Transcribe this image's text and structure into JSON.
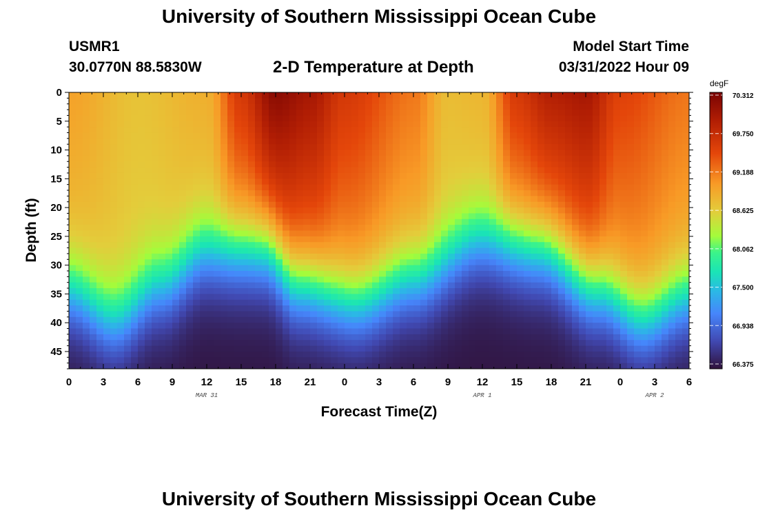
{
  "header": {
    "title": "University of Southern Mississippi Ocean Cube",
    "station_id": "USMR1",
    "station_coords": "30.0770N  88.5830W",
    "plot_title": "2-D Temperature at Depth",
    "model_start_label": "Model Start Time",
    "model_start_value": "03/31/2022 Hour 09"
  },
  "footer": {
    "title": "University of Southern Mississippi Ocean Cube"
  },
  "chart_data": {
    "type": "heatmap",
    "xlabel": "Forecast Time(Z)",
    "ylabel": "Depth (ft)",
    "x_tick_labels": [
      "0",
      "3",
      "6",
      "9",
      "12",
      "15",
      "18",
      "21",
      "0",
      "3",
      "6",
      "9",
      "12",
      "15",
      "18",
      "21",
      "0",
      "3",
      "6"
    ],
    "x_hours": [
      0,
      3,
      6,
      9,
      12,
      15,
      18,
      21,
      24,
      27,
      30,
      33,
      36,
      39,
      42,
      45,
      48,
      51,
      54
    ],
    "xlim": [
      0,
      54
    ],
    "date_labels": [
      {
        "text": "MAR 31",
        "hour": 12
      },
      {
        "text": "APR 1",
        "hour": 36
      },
      {
        "text": "APR 2",
        "hour": 51
      }
    ],
    "y_ticks": [
      0,
      5,
      10,
      15,
      20,
      25,
      30,
      35,
      40,
      45
    ],
    "ylim": [
      0,
      48
    ],
    "y_inverted": true,
    "colorbar": {
      "unit": "degF",
      "labels": [
        "70.312",
        "69.750",
        "69.188",
        "68.625",
        "68.062",
        "67.500",
        "66.938",
        "66.375"
      ],
      "min": 66.375,
      "max": 70.312
    },
    "surface_temps": [
      {
        "hour": 0,
        "temp": 68.95
      },
      {
        "hour": 6,
        "temp": 68.7
      },
      {
        "hour": 12,
        "temp": 68.85
      },
      {
        "hour": 15,
        "temp": 69.6
      },
      {
        "hour": 18,
        "temp": 70.2
      },
      {
        "hour": 21,
        "temp": 70.0
      },
      {
        "hour": 24,
        "temp": 69.6
      },
      {
        "hour": 30,
        "temp": 69.2
      },
      {
        "hour": 33,
        "temp": 68.75
      },
      {
        "hour": 36,
        "temp": 68.8
      },
      {
        "hour": 39,
        "temp": 69.6
      },
      {
        "hour": 42,
        "temp": 69.9
      },
      {
        "hour": 45,
        "temp": 70.0
      },
      {
        "hour": 48,
        "temp": 69.5
      },
      {
        "hour": 54,
        "temp": 69.2
      }
    ],
    "mixed_layer_depth_ft": [
      {
        "hour": 0,
        "depth": 35
      },
      {
        "hour": 4,
        "depth": 40
      },
      {
        "hour": 8,
        "depth": 34
      },
      {
        "hour": 12,
        "depth": 28
      },
      {
        "hour": 17,
        "depth": 28
      },
      {
        "hour": 20,
        "depth": 34
      },
      {
        "hour": 25,
        "depth": 37
      },
      {
        "hour": 30,
        "depth": 33
      },
      {
        "hour": 36,
        "depth": 26
      },
      {
        "hour": 41,
        "depth": 28
      },
      {
        "hour": 46,
        "depth": 35
      },
      {
        "hour": 50,
        "depth": 40
      },
      {
        "hour": 54,
        "depth": 36
      }
    ],
    "bottom_temp": 66.4
  }
}
